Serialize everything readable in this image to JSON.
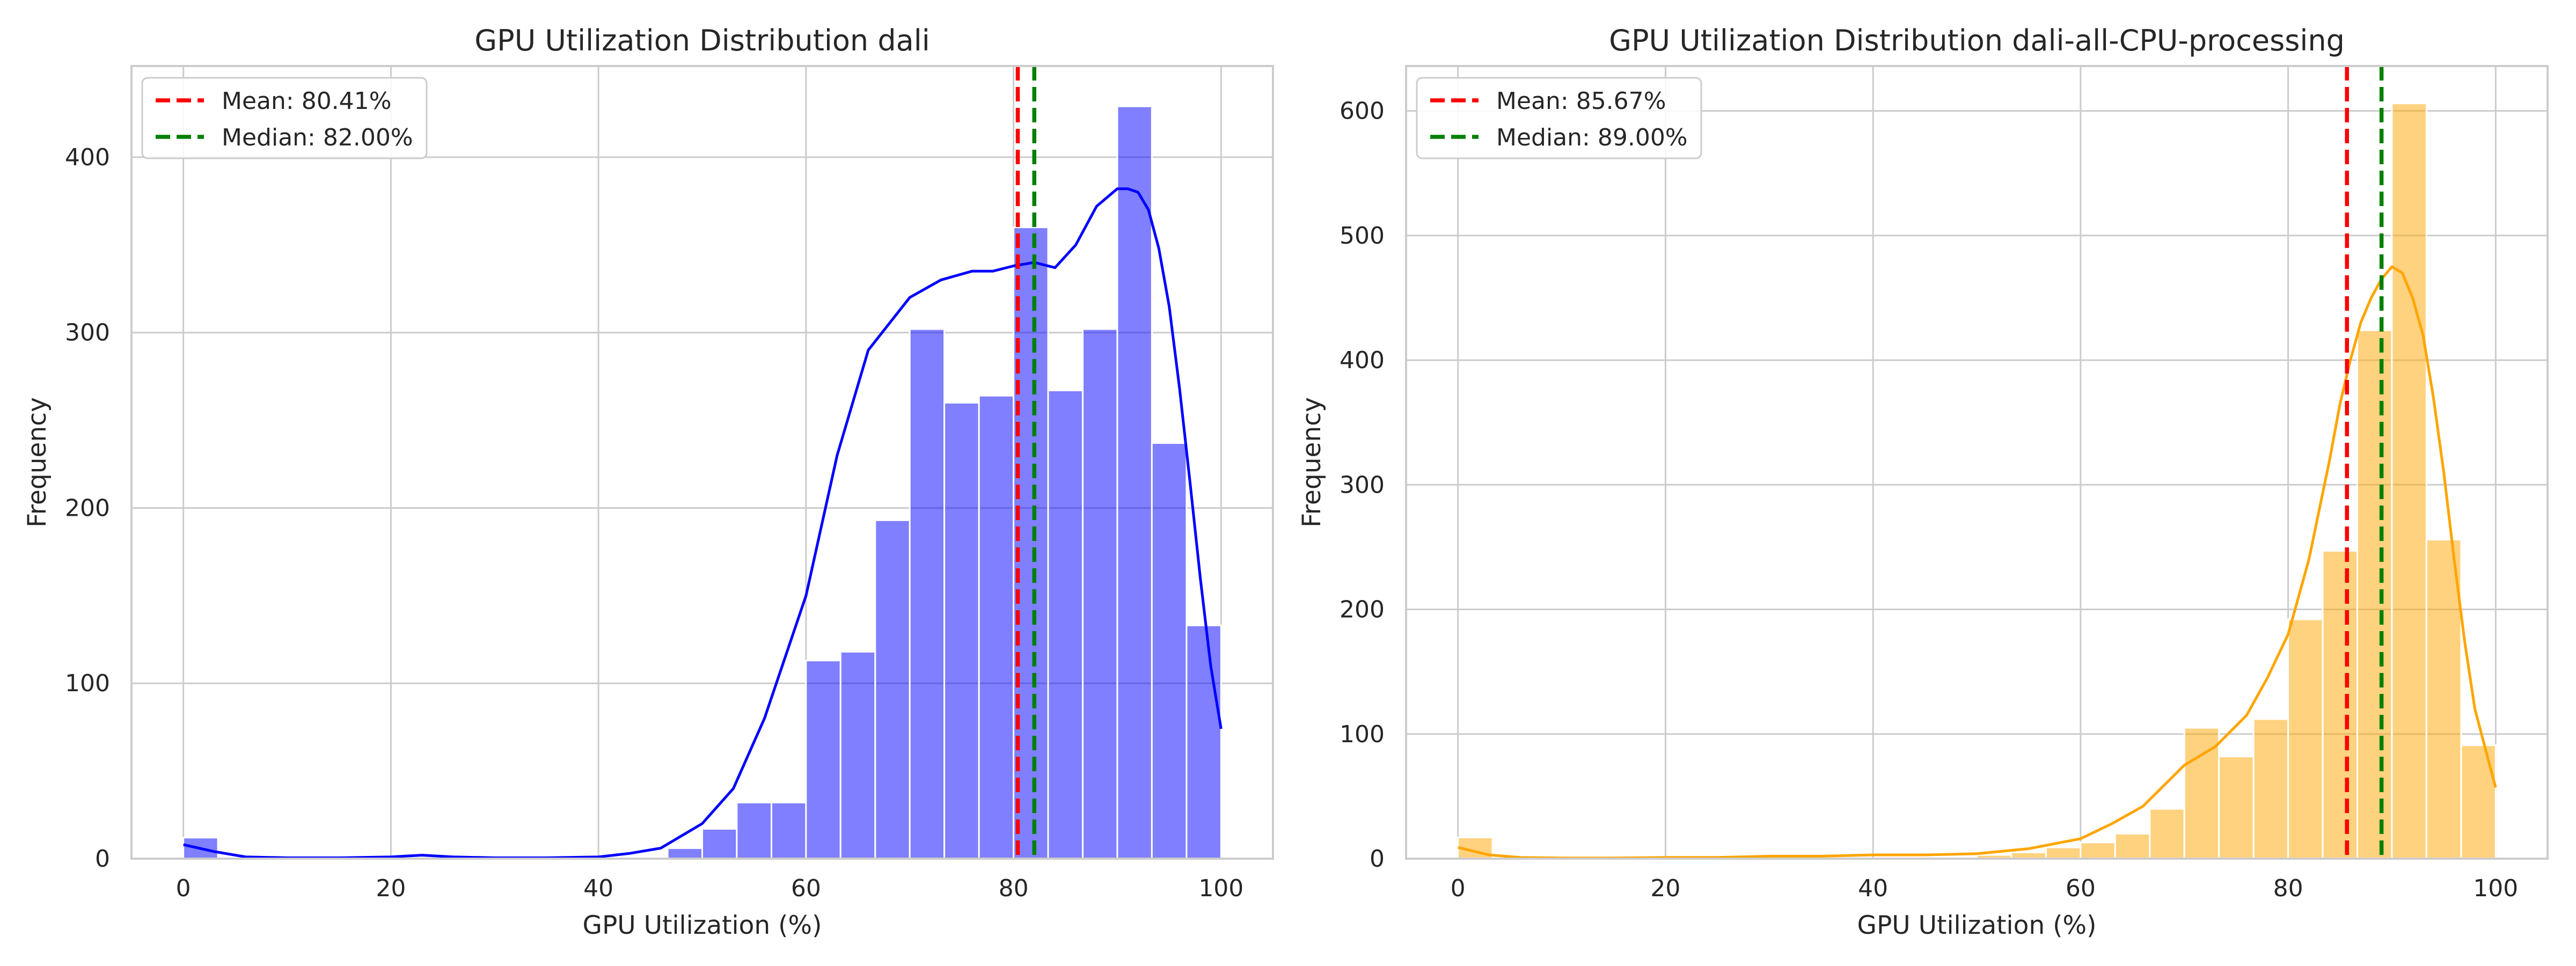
{
  "chart_data": [
    {
      "type": "bar",
      "title": "GPU Utilization Distribution dali",
      "xlabel": "GPU Utilization (%)",
      "ylabel": "Frequency",
      "xlim": [
        -5,
        105
      ],
      "ylim": [
        0,
        452
      ],
      "xticks": [
        0,
        20,
        40,
        60,
        80,
        100
      ],
      "yticks": [
        0,
        100,
        200,
        300,
        400
      ],
      "grid": true,
      "legend_position": "upper left",
      "hist_color": "#0000ff",
      "kde_color": "#0000ff",
      "bin_edges": [
        0,
        3.33,
        6.67,
        10,
        13.33,
        16.67,
        20,
        23.33,
        26.67,
        30,
        33.33,
        36.67,
        40,
        43.33,
        46.67,
        50,
        53.33,
        56.67,
        60,
        63.33,
        66.67,
        70,
        73.33,
        76.67,
        80,
        83.33,
        86.67,
        90,
        93.33,
        96.67,
        100
      ],
      "counts": [
        12,
        0,
        0,
        0,
        0,
        0,
        0,
        0,
        0,
        0,
        0,
        0,
        0,
        0,
        6,
        17,
        32,
        32,
        113,
        118,
        193,
        302,
        260,
        264,
        360,
        267,
        302,
        429,
        237,
        133
      ],
      "kde": {
        "x": [
          0,
          3,
          6,
          10,
          15,
          20,
          23,
          26,
          30,
          35,
          40,
          43,
          46,
          50,
          53,
          56,
          60,
          63,
          66,
          70,
          73,
          76,
          78,
          80,
          82,
          84,
          86,
          88,
          90,
          91,
          92,
          93,
          94,
          95,
          96,
          97,
          98,
          99,
          100
        ],
        "y": [
          8,
          4,
          1,
          0.5,
          0.5,
          1,
          2,
          1,
          0.5,
          0.5,
          1,
          3,
          6,
          20,
          40,
          80,
          150,
          230,
          290,
          320,
          330,
          335,
          335,
          338,
          340,
          337,
          350,
          372,
          382,
          382,
          380,
          370,
          348,
          315,
          268,
          215,
          160,
          110,
          74
        ]
      },
      "lines": [
        {
          "label": "Mean: 80.41%",
          "x": 80.41,
          "color": "#ff0000",
          "style": "dashed"
        },
        {
          "label": "Median: 82.00%",
          "x": 82.0,
          "color": "#008000",
          "style": "dashed"
        }
      ]
    },
    {
      "type": "bar",
      "title": "GPU Utilization Distribution dali-all-CPU-processing",
      "xlabel": "GPU Utilization (%)",
      "ylabel": "Frequency",
      "xlim": [
        -5,
        105
      ],
      "ylim": [
        0,
        636
      ],
      "xticks": [
        0,
        20,
        40,
        60,
        80,
        100
      ],
      "yticks": [
        0,
        100,
        200,
        300,
        400,
        500,
        600
      ],
      "grid": true,
      "legend_position": "upper left",
      "hist_color": "#ffa500",
      "kde_color": "#ffa500",
      "bin_edges": [
        0,
        3.33,
        6.67,
        10,
        13.33,
        16.67,
        20,
        23.33,
        26.67,
        30,
        33.33,
        36.67,
        40,
        43.33,
        46.67,
        50,
        53.33,
        56.67,
        60,
        63.33,
        66.67,
        70,
        73.33,
        76.67,
        80,
        83.33,
        86.67,
        90,
        93.33,
        96.67,
        100
      ],
      "counts": [
        17,
        0,
        0,
        0,
        0,
        0,
        0,
        0,
        0,
        0,
        0,
        0,
        0,
        0,
        0,
        3,
        5,
        9,
        13,
        20,
        40,
        105,
        82,
        112,
        192,
        247,
        424,
        606,
        256,
        91
      ],
      "kde": {
        "x": [
          0,
          3,
          6,
          10,
          15,
          20,
          25,
          30,
          35,
          40,
          45,
          50,
          55,
          60,
          63,
          66,
          70,
          73,
          76,
          78,
          80,
          82,
          84,
          85,
          86,
          87,
          88,
          89,
          90,
          91,
          92,
          93,
          94,
          95,
          96,
          97,
          98,
          100
        ],
        "y": [
          9,
          3,
          1,
          0.5,
          0.5,
          1,
          1,
          2,
          2,
          3,
          3,
          4,
          8,
          16,
          28,
          42,
          75,
          90,
          115,
          145,
          180,
          240,
          320,
          365,
          400,
          430,
          450,
          465,
          475,
          470,
          450,
          420,
          370,
          310,
          240,
          175,
          120,
          57
        ]
      },
      "lines": [
        {
          "label": "Mean: 85.67%",
          "x": 85.67,
          "color": "#ff0000",
          "style": "dashed"
        },
        {
          "label": "Median: 89.00%",
          "x": 89.0,
          "color": "#008000",
          "style": "dashed"
        }
      ]
    }
  ]
}
